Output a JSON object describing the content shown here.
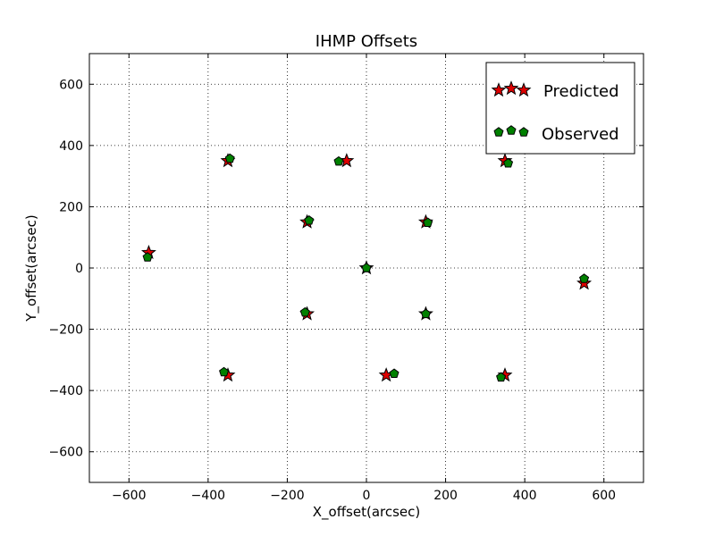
{
  "chart_data": {
    "type": "scatter",
    "title": "IHMP Offsets",
    "xlabel": "X_offset(arcsec)",
    "ylabel": "Y_offset(arcsec)",
    "xlim": [
      -700,
      700
    ],
    "ylim": [
      -700,
      700
    ],
    "x_ticks": [
      -600,
      -400,
      -200,
      0,
      200,
      400,
      600
    ],
    "y_ticks": [
      -600,
      -400,
      -200,
      0,
      200,
      400,
      600
    ],
    "x_tick_labels": [
      "−600",
      "−400",
      "−200",
      "0",
      "200",
      "400",
      "600"
    ],
    "y_tick_labels": [
      "−600",
      "−400",
      "−200",
      "0",
      "200",
      "400",
      "600"
    ],
    "grid": true,
    "legend_position": "top-right",
    "series": [
      {
        "name": "Predicted",
        "marker": "star",
        "color": "#dd0000",
        "points": [
          [
            0,
            0
          ],
          [
            -350,
            350
          ],
          [
            -50,
            350
          ],
          [
            350,
            350
          ],
          [
            -150,
            150
          ],
          [
            150,
            150
          ],
          [
            -550,
            50
          ],
          [
            550,
            -50
          ],
          [
            -150,
            -150
          ],
          [
            150,
            -150
          ],
          [
            -350,
            -350
          ],
          [
            50,
            -350
          ],
          [
            350,
            -350
          ]
        ]
      },
      {
        "name": "Observed",
        "marker": "pentagon",
        "color": "#008000",
        "points": [
          [
            0,
            0
          ],
          [
            -345,
            357
          ],
          [
            -70,
            348
          ],
          [
            358,
            342
          ],
          [
            -145,
            155
          ],
          [
            155,
            148
          ],
          [
            -553,
            35
          ],
          [
            550,
            -35
          ],
          [
            -155,
            -145
          ],
          [
            150,
            -150
          ],
          [
            -360,
            -340
          ],
          [
            70,
            -345
          ],
          [
            340,
            -357
          ]
        ]
      }
    ]
  }
}
